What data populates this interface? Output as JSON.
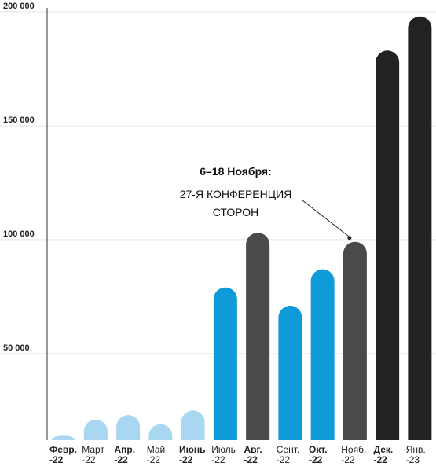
{
  "chart_data": {
    "type": "bar",
    "categories": [
      {
        "line1": "Февр.",
        "line2": "-22",
        "bold": true
      },
      {
        "line1": "Март",
        "line2": "-22",
        "bold": false
      },
      {
        "line1": "Апр.",
        "line2": "-22",
        "bold": true
      },
      {
        "line1": "Май",
        "line2": "-22",
        "bold": false
      },
      {
        "line1": "Июнь",
        "line2": "-22",
        "bold": true
      },
      {
        "line1": "Июль",
        "line2": "-22",
        "bold": false
      },
      {
        "line1": "Авг.",
        "line2": "-22",
        "bold": true
      },
      {
        "line1": "Сент.",
        "line2": "-22",
        "bold": false
      },
      {
        "line1": "Окт.",
        "line2": "-22",
        "bold": true
      },
      {
        "line1": "Нояб.",
        "line2": "-22",
        "bold": false
      },
      {
        "line1": "Дек.",
        "line2": "-22",
        "bold": true
      },
      {
        "line1": "Янв.",
        "line2": "-23",
        "bold": false
      }
    ],
    "values": [
      14000,
      21000,
      23000,
      19000,
      25000,
      79000,
      103000,
      71000,
      87000,
      99000,
      183000,
      198000
    ],
    "bar_colors": [
      "#a9d6f1",
      "#a9d6f1",
      "#a9d6f1",
      "#a9d6f1",
      "#a9d6f1",
      "#0f9ad8",
      "#4a4a4a",
      "#0f9ad8",
      "#0f9ad8",
      "#4a4a4a",
      "#222222",
      "#222222"
    ],
    "yticks": [
      {
        "value": 50000,
        "label": "50 000"
      },
      {
        "value": 100000,
        "label": "100 000"
      },
      {
        "value": 150000,
        "label": "150 000"
      },
      {
        "value": 200000,
        "label": "200 000"
      }
    ],
    "ylim": [
      12000,
      200000
    ],
    "grid": true,
    "annotation": {
      "category_index": 9,
      "line1": "6–18 Ноября:",
      "line2": "27-Я КОНФЕРЕНЦИЯ",
      "line3": "СТОРОН"
    },
    "title": "",
    "xlabel": "",
    "ylabel": ""
  }
}
